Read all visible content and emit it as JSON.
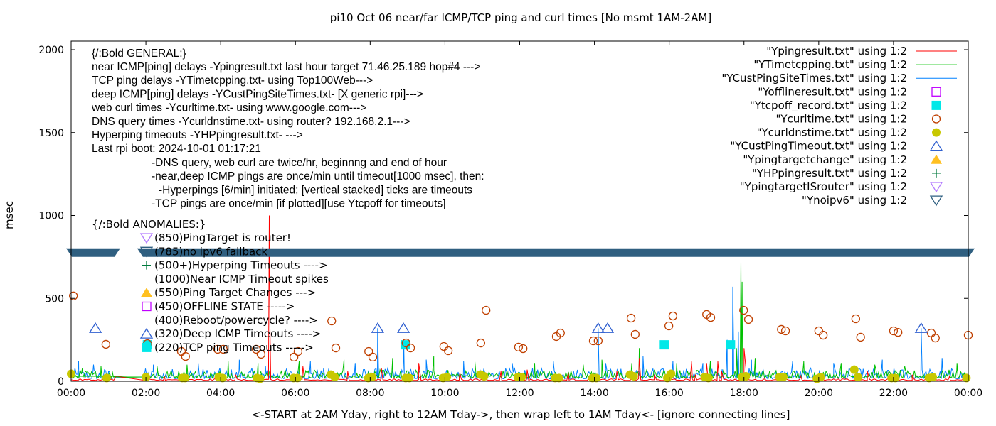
{
  "chart_data": {
    "type": "line",
    "title": "pi10 Oct 06  near/far ICMP/TCP ping and curl times [No msmt 1AM-2AM]",
    "xlabel": "<-START at 2AM Yday, right to 12AM Tday->, then wrap left to 1AM Tday<- [ignore connecting lines]",
    "ylabel": "msec",
    "xlim_hours": [
      0,
      24
    ],
    "ylim": [
      0,
      2050
    ],
    "x_tick_labels": [
      "00:00",
      "02:00",
      "04:00",
      "06:00",
      "08:00",
      "10:00",
      "12:00",
      "14:00",
      "16:00",
      "18:00",
      "20:00",
      "22:00",
      "00:00"
    ],
    "y_tick_labels": [
      "0",
      "500",
      "1000",
      "1500",
      "2000"
    ],
    "y_ticks": [
      0,
      500,
      1000,
      1500,
      2000
    ],
    "grid": false,
    "legend_position": "top-right",
    "annotations": {
      "general_header": "{/:Bold GENERAL:}",
      "general": [
        "near ICMP[ping] delays -Ypingresult.txt last hour target 71.46.25.189 hop#4 --->",
        "TCP ping delays -YTimetcpping.txt- using Top100Web--->",
        "deep ICMP[ping] delays -YCustPingSiteTimes.txt- [X generic rpi]--->",
        "web curl times -Ycurltime.txt- using www.google.com--->",
        "DNS query times -Ycurldnstime.txt- using router? 192.168.2.1--->",
        "Hyperping timeouts -YHPpingresult.txt- --->",
        "Last rpi boot: 2024-10-01 01:17:21"
      ],
      "notes": [
        "-DNS query, web curl are twice/hr, beginnng and end of hour",
        "-near,deep ICMP pings are once/min until timeout[1000 msec], then:",
        "-Hyperpings [6/min] initiated; [vertical stacked] ticks are timeouts",
        "-TCP pings are once/min [if plotted][use Ytcpoff for timeouts]"
      ],
      "anomalies_header": "{/:Bold ANOMALIES:}",
      "anomalies": [
        {
          "symbol": "triangle-down-open",
          "color": "#b47cff",
          "text": "(850)PingTarget is router!"
        },
        {
          "symbol": "triangle-down-open",
          "color": "#2f5f80",
          "text": "(785)no ipv6 fallback"
        },
        {
          "symbol": "plus",
          "color": "#007a3d",
          "text": "(500+)Hyperping Timeouts ---->"
        },
        {
          "symbol": "none",
          "color": "",
          "text": "(1000)Near ICMP Timeout spikes"
        },
        {
          "symbol": "triangle-up-filled",
          "color": "#ffc020",
          "text": "(550)Ping Target Changes --->"
        },
        {
          "symbol": "square-open",
          "color": "#c000ff",
          "text": "(450)OFFLINE STATE ----->"
        },
        {
          "symbol": "none",
          "color": "",
          "text": "(400)Reboot/powercycle? ---->"
        },
        {
          "symbol": "triangle-up-open",
          "color": "#3060d0",
          "text": "(320)Deep ICMP Timeouts ---->"
        },
        {
          "symbol": "square-filled",
          "color": "#00e8e8",
          "text": "(220)TCP ping Timeouts ----->"
        }
      ]
    },
    "series": [
      {
        "name": "\"Ypingresult.txt\" using 1:2",
        "style": "line",
        "color": "#ff0000",
        "peaks": [
          [
            1.2,
            30
          ],
          [
            2.5,
            25
          ],
          [
            4.4,
            40
          ],
          [
            5.3,
            1000
          ],
          [
            5.32,
            320
          ],
          [
            6.2,
            90
          ],
          [
            7.4,
            60
          ],
          [
            8.3,
            80
          ],
          [
            9.3,
            110
          ],
          [
            10.4,
            50
          ],
          [
            11.5,
            60
          ],
          [
            12.2,
            70
          ],
          [
            13.3,
            50
          ],
          [
            14.6,
            60
          ],
          [
            15.2,
            140
          ],
          [
            15.6,
            40
          ],
          [
            16.6,
            120
          ],
          [
            16.7,
            40
          ],
          [
            17.0,
            110
          ],
          [
            17.3,
            120
          ],
          [
            17.4,
            60
          ],
          [
            18.0,
            200
          ],
          [
            18.05,
            80
          ],
          [
            19.5,
            40
          ],
          [
            21.3,
            60
          ],
          [
            22.5,
            40
          ],
          [
            23.5,
            30
          ]
        ]
      },
      {
        "name": "\"YTimetcpping.txt\" using 1:2",
        "style": "line",
        "color": "#00c000",
        "peaks": [
          [
            0.3,
            80
          ],
          [
            0.8,
            90
          ],
          [
            1.1,
            60
          ],
          [
            2.3,
            90
          ],
          [
            3.1,
            100
          ],
          [
            4.2,
            120
          ],
          [
            5.0,
            110
          ],
          [
            6.1,
            120
          ],
          [
            7.3,
            130
          ],
          [
            8.6,
            140
          ],
          [
            9.7,
            150
          ],
          [
            10.8,
            120
          ],
          [
            12.4,
            110
          ],
          [
            13.7,
            100
          ],
          [
            14.2,
            130
          ],
          [
            15.0,
            110
          ],
          [
            15.2,
            200
          ],
          [
            16.2,
            110
          ],
          [
            17.1,
            120
          ],
          [
            17.8,
            200
          ],
          [
            17.92,
            720
          ],
          [
            17.95,
            600
          ],
          [
            18.3,
            140
          ],
          [
            19.6,
            120
          ],
          [
            20.6,
            110
          ],
          [
            21.5,
            100
          ],
          [
            22.3,
            90
          ],
          [
            23.7,
            110
          ]
        ]
      },
      {
        "name": "\"YCustPingSiteTimes.txt\" using 1:2",
        "style": "line",
        "color": "#0080ff",
        "peaks": [
          [
            0.2,
            120
          ],
          [
            0.6,
            100
          ],
          [
            1.0,
            60
          ],
          [
            2.2,
            100
          ],
          [
            3.4,
            110
          ],
          [
            4.5,
            130
          ],
          [
            5.2,
            90
          ],
          [
            6.4,
            120
          ],
          [
            7.6,
            110
          ],
          [
            8.2,
            320
          ],
          [
            8.9,
            220
          ],
          [
            9.5,
            130
          ],
          [
            10.5,
            120
          ],
          [
            11.8,
            110
          ],
          [
            12.9,
            120
          ],
          [
            14.1,
            320
          ],
          [
            14.3,
            110
          ],
          [
            15.3,
            150
          ],
          [
            16.1,
            120
          ],
          [
            16.9,
            110
          ],
          [
            17.55,
            250
          ],
          [
            17.7,
            570
          ],
          [
            17.72,
            260
          ],
          [
            17.85,
            300
          ],
          [
            18.2,
            130
          ],
          [
            19.3,
            120
          ],
          [
            20.4,
            110
          ],
          [
            21.7,
            130
          ],
          [
            22.74,
            320
          ],
          [
            23.3,
            140
          ]
        ]
      },
      {
        "name": "\"Yofflineresult.txt\" using 1:2",
        "style": "square-open",
        "color": "#c000ff",
        "points": []
      },
      {
        "name": "\"Ytcpoff_record.txt\" using 1:2",
        "style": "square-filled",
        "color": "#00e8e8",
        "points": [
          [
            2.04,
            220
          ],
          [
            8.95,
            220
          ],
          [
            15.87,
            220
          ],
          [
            17.64,
            220
          ]
        ]
      },
      {
        "name": "\"Ycurltime.txt\" using 1:2",
        "style": "circle-open",
        "color": "#c04000",
        "points": [
          [
            0.06,
            515
          ],
          [
            0.93,
            223
          ],
          [
            2.04,
            227
          ],
          [
            2.95,
            180
          ],
          [
            3.06,
            150
          ],
          [
            3.92,
            193
          ],
          [
            4.07,
            193
          ],
          [
            4.95,
            193
          ],
          [
            5.08,
            163
          ],
          [
            5.96,
            146
          ],
          [
            6.07,
            180
          ],
          [
            6.97,
            364
          ],
          [
            7.08,
            201
          ],
          [
            7.96,
            180
          ],
          [
            8.07,
            146
          ],
          [
            8.96,
            231
          ],
          [
            9.08,
            201
          ],
          [
            9.97,
            210
          ],
          [
            10.09,
            184
          ],
          [
            10.96,
            231
          ],
          [
            11.1,
            428
          ],
          [
            11.97,
            206
          ],
          [
            12.09,
            197
          ],
          [
            12.98,
            270
          ],
          [
            13.09,
            291
          ],
          [
            13.97,
            244
          ],
          [
            14.1,
            244
          ],
          [
            14.98,
            381
          ],
          [
            15.09,
            283
          ],
          [
            15.99,
            334
          ],
          [
            16.1,
            394
          ],
          [
            17.0,
            403
          ],
          [
            17.11,
            385
          ],
          [
            17.99,
            428
          ],
          [
            18.12,
            373
          ],
          [
            19.0,
            313
          ],
          [
            19.11,
            304
          ],
          [
            20.0,
            304
          ],
          [
            20.12,
            278
          ],
          [
            20.99,
            377
          ],
          [
            21.12,
            266
          ],
          [
            22.0,
            304
          ],
          [
            22.12,
            295
          ],
          [
            23.01,
            291
          ],
          [
            23.12,
            261
          ],
          [
            24.0,
            278
          ]
        ]
      },
      {
        "name": "\"Ycurldnstime.txt\" using 1:2",
        "style": "circle-filled",
        "color": "#c8c800",
        "points": [
          [
            0.0,
            45
          ],
          [
            0.95,
            20
          ],
          [
            2.0,
            25
          ],
          [
            2.97,
            20
          ],
          [
            3.05,
            20
          ],
          [
            3.95,
            25
          ],
          [
            4.05,
            20
          ],
          [
            4.97,
            20
          ],
          [
            5.05,
            15
          ],
          [
            5.95,
            20
          ],
          [
            6.05,
            20
          ],
          [
            6.95,
            40
          ],
          [
            7.05,
            25
          ],
          [
            7.95,
            20
          ],
          [
            8.05,
            25
          ],
          [
            8.95,
            20
          ],
          [
            9.05,
            20
          ],
          [
            9.95,
            20
          ],
          [
            10.05,
            25
          ],
          [
            10.95,
            40
          ],
          [
            11.05,
            30
          ],
          [
            11.95,
            25
          ],
          [
            12.05,
            25
          ],
          [
            12.95,
            20
          ],
          [
            13.05,
            20
          ],
          [
            13.95,
            20
          ],
          [
            14.05,
            20
          ],
          [
            14.95,
            40
          ],
          [
            15.05,
            30
          ],
          [
            15.95,
            20
          ],
          [
            16.05,
            45
          ],
          [
            16.95,
            25
          ],
          [
            17.05,
            20
          ],
          [
            17.95,
            25
          ],
          [
            18.05,
            30
          ],
          [
            18.95,
            25
          ],
          [
            19.05,
            25
          ],
          [
            19.95,
            15
          ],
          [
            20.05,
            25
          ],
          [
            20.95,
            70
          ],
          [
            21.05,
            25
          ],
          [
            21.95,
            20
          ],
          [
            22.05,
            20
          ],
          [
            22.95,
            20
          ],
          [
            23.05,
            25
          ],
          [
            23.95,
            20
          ]
        ]
      },
      {
        "name": "\"YCustPingTimeout.txt\" using 1:2",
        "style": "triangle-up-open",
        "color": "#3060d0",
        "points": [
          [
            0.65,
            320
          ],
          [
            8.2,
            320
          ],
          [
            8.89,
            320
          ],
          [
            14.1,
            320
          ],
          [
            14.35,
            320
          ],
          [
            22.74,
            320
          ]
        ]
      },
      {
        "name": "\"Ypingtargetchange\" using 1:2",
        "style": "triangle-up-filled",
        "color": "#ffc020",
        "points": []
      },
      {
        "name": "\"YHPpingresult.txt\" using 1:2",
        "style": "plus",
        "color": "#007a3d",
        "points": []
      },
      {
        "name": "\"YpingtargetISrouter\" using 1:2",
        "style": "triangle-down-open",
        "color": "#b47cff",
        "points": []
      },
      {
        "name": "\"Ynoipv6\" using 1:2",
        "style": "triangle-down-open",
        "color": "#2f5f80",
        "value": 785,
        "intervals_hours": [
          [
            0.0,
            1.14
          ],
          [
            1.9,
            24.0
          ]
        ]
      }
    ]
  }
}
